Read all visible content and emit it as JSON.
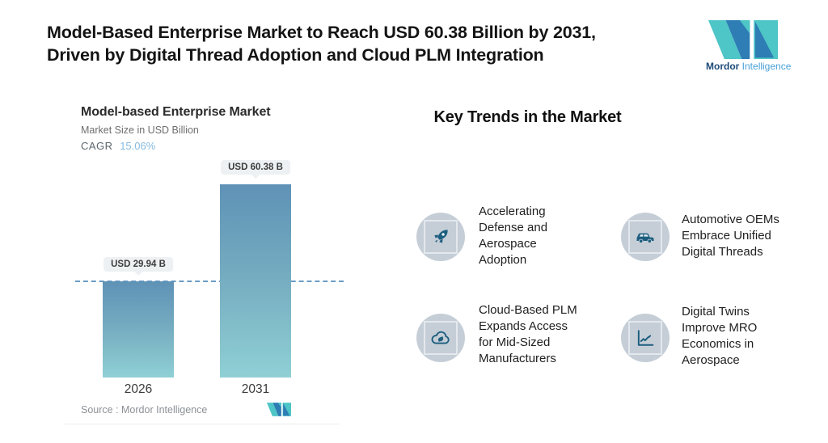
{
  "header": {
    "title_line1": "Model-Based Enterprise Market to Reach USD 60.38 Billion by 2031,",
    "title_line2": "Driven by Digital Thread Adoption and Cloud PLM Integration",
    "brand_bold": "Mordor",
    "brand_light": "Intelligence"
  },
  "chart_data": {
    "type": "bar",
    "title": "Model-based Enterprise Market",
    "subtitle": "Market Size in USD Billion",
    "cagr_label": "CAGR",
    "cagr_value": "15.06%",
    "categories": [
      "2026",
      "2031"
    ],
    "values": [
      29.94,
      60.38
    ],
    "value_labels": [
      "USD 29.94 B",
      "USD 60.38 B"
    ],
    "ylabel": "Market Size in USD Billion",
    "ylim": [
      0,
      65
    ],
    "reference_line_at": 29.94,
    "reference_line_style": "dashed",
    "grid": false,
    "legend": "none",
    "bar_gradient_top": "#5f92b6",
    "bar_gradient_bottom": "#8fd0d5",
    "source": "Source :  Mordor Intelligence"
  },
  "trends": {
    "heading": "Key Trends in the Market",
    "items": [
      {
        "icon": "rocket-icon",
        "text": "Accelerating\nDefense and\nAerospace\nAdoption"
      },
      {
        "icon": "car-icon",
        "text": "Automotive OEMs\nEmbrace Unified\nDigital Threads"
      },
      {
        "icon": "cloud-sync-icon",
        "text": "Cloud-Based PLM\nExpands Access\nfor Mid-Sized\nManufacturers"
      },
      {
        "icon": "line-chart-icon",
        "text": "Digital Twins\nImprove MRO\nEconomics in\nAerospace"
      }
    ]
  },
  "colors": {
    "accent_blue": "#2e7db4",
    "accent_teal": "#4ec5c7",
    "icon_glyph": "#1d5e7f",
    "icon_circle_bg": "#c5ced7",
    "dashed_line": "#6a9bc3",
    "pill_bg": "#edf1f3",
    "cagr_value": "#86bbdf"
  }
}
